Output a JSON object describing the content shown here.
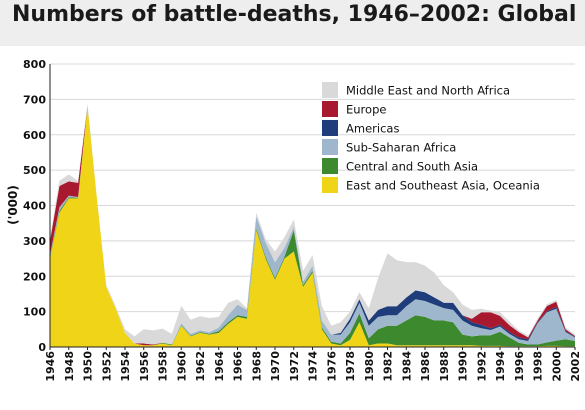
{
  "page": {
    "title": "Numbers of battle-deaths, 1946–2002: Global"
  },
  "chart_data": {
    "type": "area",
    "stacked": true,
    "title": "Numbers of battle-deaths, 1946–2002: Global",
    "xlabel": "",
    "ylabel": "('000)",
    "xlim": [
      1946,
      2002
    ],
    "ylim": [
      0,
      800
    ],
    "yticks": [
      0,
      100,
      200,
      300,
      400,
      500,
      600,
      700,
      800
    ],
    "xticks": [
      1946,
      1948,
      1950,
      1952,
      1954,
      1956,
      1958,
      1960,
      1962,
      1964,
      1966,
      1968,
      1970,
      1972,
      1974,
      1976,
      1978,
      1980,
      1982,
      1984,
      1986,
      1988,
      1990,
      1992,
      1994,
      1996,
      1998,
      2000,
      2002
    ],
    "grid": "horizontal",
    "legend_position": "top-right",
    "x": [
      1946,
      1947,
      1948,
      1949,
      1950,
      1951,
      1952,
      1953,
      1954,
      1955,
      1956,
      1957,
      1958,
      1959,
      1960,
      1961,
      1962,
      1963,
      1964,
      1965,
      1966,
      1967,
      1968,
      1969,
      1970,
      1971,
      1972,
      1973,
      1974,
      1975,
      1976,
      1977,
      1978,
      1979,
      1980,
      1981,
      1982,
      1983,
      1984,
      1985,
      1986,
      1987,
      1988,
      1989,
      1990,
      1991,
      1992,
      1993,
      1994,
      1995,
      1996,
      1997,
      1998,
      1999,
      2000,
      2001,
      2002
    ],
    "series": [
      {
        "name": "East and Southeast Asia, Oceania",
        "color": "#f0d418",
        "values": [
          250,
          380,
          420,
          420,
          680,
          420,
          170,
          110,
          40,
          10,
          5,
          5,
          10,
          5,
          60,
          30,
          40,
          35,
          40,
          65,
          85,
          80,
          330,
          250,
          190,
          250,
          270,
          170,
          210,
          50,
          10,
          5,
          20,
          70,
          5,
          10,
          10,
          5,
          5,
          5,
          5,
          5,
          5,
          5,
          5,
          5,
          3,
          3,
          3,
          2,
          2,
          2,
          2,
          3,
          3,
          2,
          2
        ]
      },
      {
        "name": "Central and South Asia",
        "color": "#3d8a2e",
        "values": [
          5,
          5,
          3,
          2,
          2,
          0,
          0,
          0,
          0,
          0,
          0,
          0,
          2,
          2,
          2,
          2,
          2,
          2,
          5,
          5,
          5,
          5,
          5,
          5,
          5,
          5,
          60,
          5,
          5,
          5,
          5,
          5,
          20,
          25,
          20,
          40,
          50,
          55,
          70,
          85,
          80,
          70,
          70,
          65,
          30,
          25,
          30,
          30,
          40,
          25,
          10,
          5,
          5,
          10,
          15,
          20,
          15
        ]
      },
      {
        "name": "Sub-Saharan Africa",
        "color": "#9eb7cc",
        "values": [
          5,
          10,
          5,
          2,
          0,
          0,
          0,
          0,
          0,
          0,
          0,
          0,
          0,
          0,
          5,
          5,
          5,
          5,
          10,
          20,
          30,
          20,
          35,
          40,
          45,
          25,
          10,
          10,
          15,
          20,
          20,
          25,
          30,
          30,
          35,
          35,
          30,
          30,
          40,
          45,
          45,
          45,
          35,
          35,
          40,
          30,
          20,
          15,
          15,
          10,
          10,
          10,
          60,
          85,
          90,
          20,
          10
        ]
      },
      {
        "name": "Americas",
        "color": "#1f3d7a",
        "values": [
          0,
          0,
          0,
          0,
          0,
          0,
          0,
          0,
          0,
          0,
          0,
          0,
          0,
          0,
          0,
          0,
          0,
          0,
          0,
          0,
          0,
          0,
          0,
          0,
          0,
          0,
          0,
          0,
          0,
          0,
          0,
          5,
          10,
          10,
          15,
          20,
          25,
          25,
          25,
          25,
          25,
          20,
          15,
          20,
          15,
          10,
          10,
          5,
          5,
          5,
          5,
          5,
          3,
          3,
          5,
          3,
          2
        ]
      },
      {
        "name": "Europe",
        "color": "#a8182e",
        "values": [
          40,
          60,
          40,
          40,
          0,
          0,
          0,
          0,
          0,
          0,
          5,
          2,
          0,
          0,
          0,
          0,
          0,
          0,
          0,
          0,
          0,
          0,
          0,
          0,
          0,
          0,
          0,
          0,
          0,
          0,
          0,
          0,
          0,
          0,
          0,
          0,
          0,
          0,
          0,
          0,
          0,
          0,
          0,
          0,
          0,
          10,
          35,
          45,
          25,
          20,
          15,
          5,
          5,
          15,
          15,
          5,
          2
        ]
      },
      {
        "name": "Middle East and North Africa",
        "color": "#d9d9d9",
        "values": [
          10,
          15,
          20,
          5,
          5,
          0,
          5,
          5,
          10,
          20,
          40,
          40,
          40,
          30,
          50,
          40,
          40,
          40,
          30,
          35,
          15,
          5,
          10,
          10,
          30,
          30,
          20,
          30,
          30,
          40,
          25,
          30,
          20,
          20,
          35,
          90,
          150,
          130,
          100,
          80,
          75,
          70,
          50,
          30,
          30,
          25,
          10,
          5,
          10,
          10,
          5,
          5,
          5,
          5,
          5,
          5,
          5
        ]
      }
    ]
  }
}
